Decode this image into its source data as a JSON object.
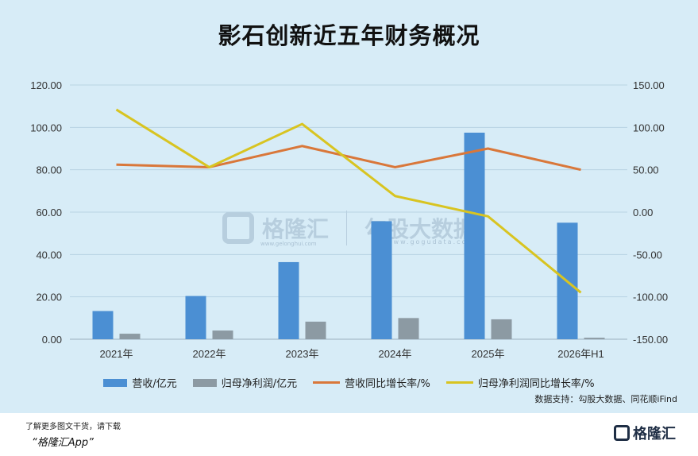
{
  "title": "影石创新近五年财务概况",
  "chart_data": {
    "type": "bar",
    "categories": [
      "2021年",
      "2022年",
      "2023年",
      "2024年",
      "2025年",
      "2026年H1"
    ],
    "series": [
      {
        "name": "营收/亿元",
        "type": "bar",
        "axis": "left",
        "color": "#4b8fd3",
        "values": [
          13.3,
          20.4,
          36.4,
          55.7,
          97.5,
          55.0
        ]
      },
      {
        "name": "归母净利润/亿元",
        "type": "bar",
        "axis": "left",
        "color": "#8c9aa3",
        "values": [
          2.6,
          4.1,
          8.3,
          10.0,
          9.4,
          0.7
        ]
      },
      {
        "name": "营收同比增长率/%",
        "type": "line",
        "axis": "right",
        "color": "#d9773a",
        "values": [
          56.0,
          53.0,
          78.0,
          53.0,
          75.0,
          50.0
        ]
      },
      {
        "name": "归母净利润同比增长率/%",
        "type": "line",
        "axis": "right",
        "color": "#d8c421",
        "values": [
          121.0,
          53.0,
          104.0,
          19.0,
          -5.0,
          -95.0
        ]
      }
    ],
    "y_left": {
      "min": 0,
      "max": 120,
      "ticks": [
        "0.00",
        "20.00",
        "40.00",
        "60.00",
        "80.00",
        "100.00",
        "120.00"
      ]
    },
    "y_right": {
      "min": -150,
      "max": 150,
      "ticks": [
        "-150.00",
        "-100.00",
        "-50.00",
        "0.00",
        "50.00",
        "100.00",
        "150.00"
      ]
    },
    "grid": true,
    "legend_position": "bottom"
  },
  "source": "数据支持：勾股大数据、同花顺iFind",
  "footer": {
    "promo_line1": "了解更多图文干货，请下载",
    "promo_line2": "“格隆汇App”",
    "brand": "格隆汇"
  },
  "watermark": {
    "text1": "格隆汇",
    "text2": "勾股大数据",
    "url1": "www.gelonghui.com",
    "url2": "www.gogudata.com"
  }
}
